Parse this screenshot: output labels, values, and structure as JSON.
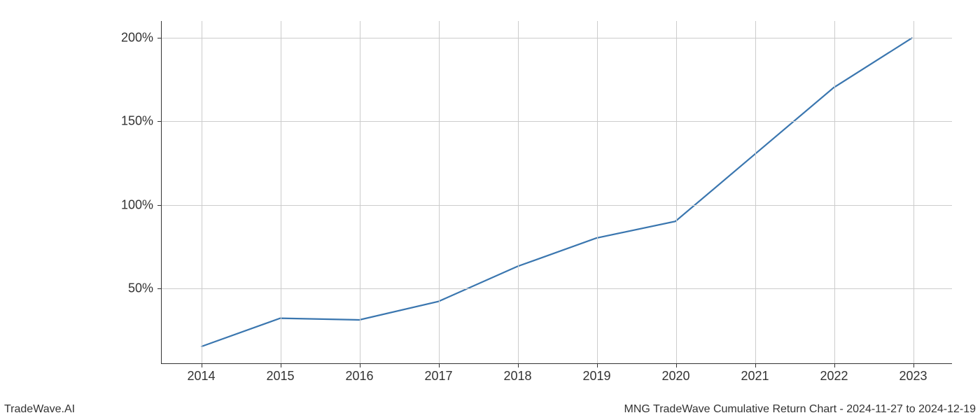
{
  "chart": {
    "type": "line",
    "x_values": [
      2014,
      2015,
      2016,
      2017,
      2018,
      2019,
      2020,
      2021,
      2022,
      2023
    ],
    "y_values": [
      15,
      32,
      31,
      42,
      63,
      80,
      90,
      130,
      170,
      200
    ],
    "line_color": "#3a76af",
    "line_width": 2.2,
    "xlim": [
      2013.5,
      2023.5
    ],
    "ylim": [
      5,
      210
    ],
    "x_ticks": [
      2014,
      2015,
      2016,
      2017,
      2018,
      2019,
      2020,
      2021,
      2022,
      2023
    ],
    "x_tick_labels": [
      "2014",
      "2015",
      "2016",
      "2017",
      "2018",
      "2019",
      "2020",
      "2021",
      "2022",
      "2023"
    ],
    "y_ticks": [
      50,
      100,
      150,
      200
    ],
    "y_tick_labels": [
      "50%",
      "100%",
      "150%",
      "200%"
    ],
    "background_color": "#ffffff",
    "grid_color": "#cccccc",
    "axis_color": "#333333",
    "tick_fontsize": 18,
    "tick_color": "#333333"
  },
  "footer": {
    "left": "TradeWave.AI",
    "right": "MNG TradeWave Cumulative Return Chart - 2024-11-27 to 2024-12-19",
    "fontsize": 16,
    "color": "#333333"
  }
}
